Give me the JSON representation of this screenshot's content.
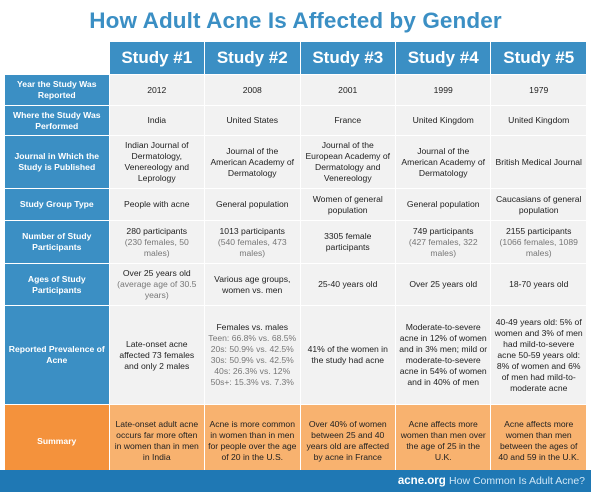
{
  "title": "How Adult Acne Is Affected by Gender",
  "studies": [
    "Study #1",
    "Study #2",
    "Study #3",
    "Study #4",
    "Study #5"
  ],
  "rows": {
    "year": {
      "label": "Year the Study Was Reported",
      "values": [
        "2012",
        "2008",
        "2001",
        "1999",
        "1979"
      ]
    },
    "where": {
      "label": "Where the Study Was Performed",
      "values": [
        "India",
        "United States",
        "France",
        "United Kingdom",
        "United Kingdom"
      ]
    },
    "journal": {
      "label": "Journal in Which the Study is Published",
      "values": [
        "Indian Journal of Dermatology, Venereology and Leprology",
        "Journal of the American Academy of Dermatology",
        "Journal of the European Academy of Dermatology and Venereology",
        "Journal of the American Academy of Dermatology",
        "British Medical Journal"
      ]
    },
    "group": {
      "label": "Study Group Type",
      "values": [
        "People with acne",
        "General population",
        "Women of general population",
        "General population",
        "Caucasians of general population"
      ]
    },
    "participants": {
      "label": "Number of Study Participants",
      "values": [
        "280 participants",
        "1013 participants",
        "3305 female participants",
        "749 participants",
        "2155 participants"
      ],
      "notes": [
        "(230 females, 50 males)",
        "(540 females, 473 males)",
        "",
        "(427 females, 322 males)",
        "(1066 females, 1089 males)"
      ]
    },
    "ages": {
      "label": "Ages of Study Participants",
      "values": [
        "Over 25 years old",
        "Various age groups, women vs. men",
        "25-40 years old",
        "Over 25 years old",
        "18-70 years old"
      ],
      "notes": [
        "(average age of 30.5 years)",
        "",
        "",
        "",
        ""
      ]
    },
    "prevalence": {
      "label": "Reported Prevalence of Acne",
      "values": [
        "Late-onset acne affected 73 females and only 2 males",
        "Females vs. males",
        "41% of the women in the study had acne",
        "Moderate-to-severe acne in 12% of women and in 3% men; mild or moderate-to-severe acne in 54% of women and in 40% of men",
        "40-49 years old: 5% of women and 3% of men had mild-to-severe acne 50-59 years old: 8% of women and 6% of men had mild-to-moderate acne"
      ],
      "study2_lines": [
        "Teen: 66.8% vs. 68.5%",
        "20s: 50.9% vs. 42.5%",
        "30s: 50.9% vs. 42.5%",
        "40s: 26.3% vs. 12%",
        "50s+: 15.3% vs. 7.3%"
      ]
    },
    "summary": {
      "label": "Summary",
      "values": [
        "Late-onset adult acne occurs far more often in women than in men in India",
        "Acne is more common in women than in men for people over the age of 20 in the U.S.",
        "Over 40% of women between 25 and 40 years old are affected by acne in France",
        "Acne affects more women than men over the age of 25 in the U.K.",
        "Acne affects more women than men between the ages of 40 and 59 in the U.K."
      ]
    }
  },
  "footer": {
    "brand": "acne.org",
    "tag": "How Common Is Adult Acne?"
  },
  "colors": {
    "blue": "#3b8fc4",
    "footer_blue": "#1f78b4",
    "summary_orange": "#f4923c",
    "summary_light": "#f8b26f",
    "cell_gray": "#f2f2f2"
  }
}
